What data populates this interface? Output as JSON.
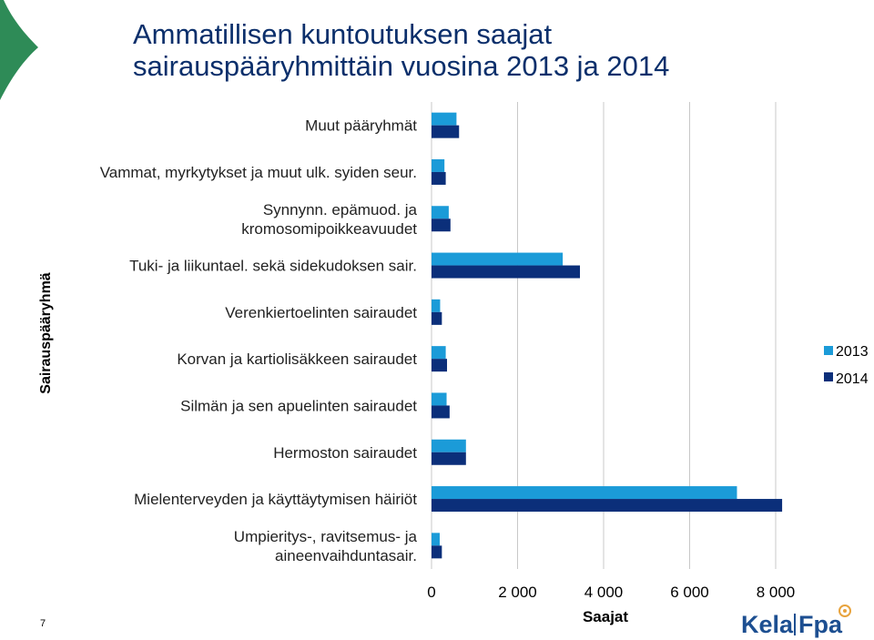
{
  "slide": {
    "title_line1": "Ammatillisen kuntoutuksen saajat",
    "title_line2": "sairauspääryhmittäin vuosina 2013 ja 2014",
    "page_number": "7",
    "logo_text_left": "Kela",
    "logo_text_right": "Fpa"
  },
  "chart_data": {
    "type": "bar",
    "orientation": "horizontal",
    "xlabel": "Saajat",
    "ylabel": "Sairauspääryhmä",
    "xlim": [
      0,
      8000
    ],
    "x_ticks": [
      "0",
      "2 000",
      "4 000",
      "6 000",
      "8 000"
    ],
    "grid": true,
    "legend_position": "right",
    "categories": [
      [
        "Muut pääryhmät"
      ],
      [
        "Vammat, myrkytykset ja muut ulk. syiden seur."
      ],
      [
        "Synnynn. epämuod. ja",
        "kromosomipoikkeavuudet"
      ],
      [
        "Tuki- ja liikuntael. sekä sidekudoksen sair."
      ],
      [
        "Verenkiertoelinten sairaudet"
      ],
      [
        "Korvan ja kartiolisäkkeen sairaudet"
      ],
      [
        "Silmän ja sen apuelinten sairaudet"
      ],
      [
        "Hermoston sairaudet"
      ],
      [
        "Mielenterveyden ja käyttäytymisen häiriöt"
      ],
      [
        "Umpieritys-, ravitsemus- ja",
        "aineenvaihduntasair."
      ]
    ],
    "series": [
      {
        "name": "2013",
        "color": "#1b9bd8",
        "values": [
          580,
          300,
          400,
          3050,
          200,
          330,
          350,
          800,
          7100,
          190
        ]
      },
      {
        "name": "2014",
        "color": "#0b2f7a",
        "values": [
          640,
          330,
          440,
          3450,
          240,
          360,
          420,
          800,
          8150,
          240
        ]
      }
    ]
  }
}
